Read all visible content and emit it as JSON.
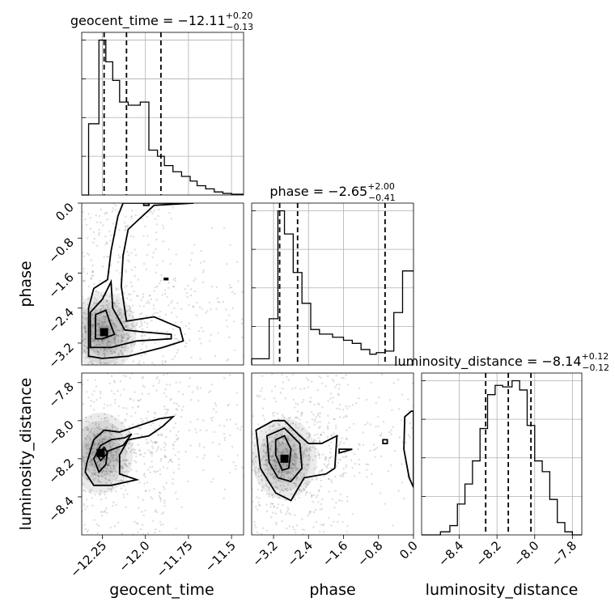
{
  "chart_data": [
    {
      "type": "histogram",
      "parameter": "geocent_time",
      "title_main": "geocent_time = −12.11",
      "title_sup": "+0.20",
      "title_sub": "−0.13",
      "xlim": [
        -12.37,
        -11.43
      ],
      "xticks": [
        -12.25,
        -12.0,
        -11.75,
        -11.5
      ],
      "bins": [
        {
          "x0": -12.37,
          "x1": -12.33,
          "h": 0.0
        },
        {
          "x0": -12.33,
          "x1": -12.27,
          "h": 0.46
        },
        {
          "x0": -12.27,
          "x1": -12.23,
          "h": 1.0
        },
        {
          "x0": -12.23,
          "x1": -12.19,
          "h": 0.86
        },
        {
          "x0": -12.19,
          "x1": -12.15,
          "h": 0.74
        },
        {
          "x0": -12.15,
          "x1": -12.1,
          "h": 0.6
        },
        {
          "x0": -12.1,
          "x1": -12.03,
          "h": 0.58
        },
        {
          "x0": -12.03,
          "x1": -11.98,
          "h": 0.6
        },
        {
          "x0": -11.98,
          "x1": -11.93,
          "h": 0.29
        },
        {
          "x0": -11.93,
          "x1": -11.89,
          "h": 0.25
        },
        {
          "x0": -11.89,
          "x1": -11.84,
          "h": 0.19
        },
        {
          "x0": -11.84,
          "x1": -11.79,
          "h": 0.15
        },
        {
          "x0": -11.79,
          "x1": -11.74,
          "h": 0.12
        },
        {
          "x0": -11.74,
          "x1": -11.7,
          "h": 0.09
        },
        {
          "x0": -11.7,
          "x1": -11.65,
          "h": 0.06
        },
        {
          "x0": -11.65,
          "x1": -11.6,
          "h": 0.04
        },
        {
          "x0": -11.6,
          "x1": -11.55,
          "h": 0.02
        },
        {
          "x0": -11.55,
          "x1": -11.5,
          "h": 0.01
        },
        {
          "x0": -11.5,
          "x1": -11.43,
          "h": 0.005
        }
      ],
      "quantiles": [
        -12.24,
        -12.11,
        -11.91
      ]
    },
    {
      "type": "histogram",
      "parameter": "phase",
      "title_main": "phase = −2.65",
      "title_sup": "+2.00",
      "title_sub": "−0.41",
      "xlim": [
        -3.7,
        0.0
      ],
      "xticks": [
        -3.2,
        -2.4,
        -1.6,
        -0.8,
        0.0
      ],
      "bins": [
        {
          "x0": -3.7,
          "x1": -3.3,
          "h": 0.04
        },
        {
          "x0": -3.3,
          "x1": -3.1,
          "h": 0.3
        },
        {
          "x0": -3.1,
          "x1": -2.95,
          "h": 1.0
        },
        {
          "x0": -2.95,
          "x1": -2.75,
          "h": 0.85
        },
        {
          "x0": -2.75,
          "x1": -2.55,
          "h": 0.6
        },
        {
          "x0": -2.55,
          "x1": -2.35,
          "h": 0.4
        },
        {
          "x0": -2.35,
          "x1": -2.15,
          "h": 0.23
        },
        {
          "x0": -2.15,
          "x1": -1.85,
          "h": 0.2
        },
        {
          "x0": -1.85,
          "x1": -1.6,
          "h": 0.18
        },
        {
          "x0": -1.6,
          "x1": -1.4,
          "h": 0.16
        },
        {
          "x0": -1.4,
          "x1": -1.2,
          "h": 0.14
        },
        {
          "x0": -1.2,
          "x1": -1.0,
          "h": 0.1
        },
        {
          "x0": -1.0,
          "x1": -0.85,
          "h": 0.07
        },
        {
          "x0": -0.85,
          "x1": -0.65,
          "h": 0.08
        },
        {
          "x0": -0.65,
          "x1": -0.45,
          "h": 0.09
        },
        {
          "x0": -0.45,
          "x1": -0.25,
          "h": 0.34
        },
        {
          "x0": -0.25,
          "x1": 0.0,
          "h": 0.61
        }
      ],
      "quantiles": [
        -3.06,
        -2.65,
        -0.65
      ]
    },
    {
      "type": "histogram",
      "parameter": "luminosity_distance",
      "title_main": "luminosity_distance = −8.14",
      "title_sup": "+0.12",
      "title_sub": "−0.12",
      "xlim": [
        -8.6,
        -7.75
      ],
      "xticks": [
        -8.4,
        -8.2,
        -8.0,
        -7.8
      ],
      "bins": [
        {
          "x0": -8.6,
          "x1": -8.5,
          "h": 0.0
        },
        {
          "x0": -8.5,
          "x1": -8.45,
          "h": 0.02
        },
        {
          "x0": -8.45,
          "x1": -8.41,
          "h": 0.06
        },
        {
          "x0": -8.41,
          "x1": -8.37,
          "h": 0.2
        },
        {
          "x0": -8.37,
          "x1": -8.33,
          "h": 0.33
        },
        {
          "x0": -8.33,
          "x1": -8.29,
          "h": 0.48
        },
        {
          "x0": -8.29,
          "x1": -8.25,
          "h": 0.69
        },
        {
          "x0": -8.25,
          "x1": -8.21,
          "h": 0.91
        },
        {
          "x0": -8.21,
          "x1": -8.17,
          "h": 0.97
        },
        {
          "x0": -8.17,
          "x1": -8.12,
          "h": 0.96
        },
        {
          "x0": -8.12,
          "x1": -8.08,
          "h": 1.0
        },
        {
          "x0": -8.08,
          "x1": -8.04,
          "h": 0.94
        },
        {
          "x0": -8.04,
          "x1": -8.0,
          "h": 0.71
        },
        {
          "x0": -8.0,
          "x1": -7.96,
          "h": 0.48
        },
        {
          "x0": -7.96,
          "x1": -7.92,
          "h": 0.41
        },
        {
          "x0": -7.92,
          "x1": -7.88,
          "h": 0.23
        },
        {
          "x0": -7.88,
          "x1": -7.84,
          "h": 0.08
        },
        {
          "x0": -7.84,
          "x1": -7.8,
          "h": 0.02
        },
        {
          "x0": -7.8,
          "x1": -7.75,
          "h": 0.0
        }
      ],
      "quantiles": [
        -8.26,
        -8.14,
        -8.02
      ]
    },
    {
      "type": "scatter-contour",
      "x_parameter": "geocent_time",
      "y_parameter": "phase",
      "xlim": [
        -12.37,
        -11.43
      ],
      "ylim": [
        -3.7,
        0.0
      ],
      "yticks": [
        0.0,
        -0.8,
        -1.6,
        -2.4,
        -3.2
      ],
      "ylabel": "phase",
      "peak": {
        "x": -12.24,
        "y": -2.95
      },
      "contours": [
        [
          [
            -12.33,
            -3.5
          ],
          [
            -12.33,
            -2.4
          ],
          [
            -12.3,
            -1.95
          ],
          [
            -12.22,
            -1.75
          ],
          [
            -12.2,
            -1.1
          ],
          [
            -12.16,
            -0.3
          ],
          [
            -12.13,
            0.0
          ],
          [
            -11.72,
            0.0
          ],
          [
            -11.95,
            -0.05
          ],
          [
            -12.1,
            -0.6
          ],
          [
            -12.13,
            -1.2
          ],
          [
            -12.14,
            -1.9
          ],
          [
            -12.11,
            -2.7
          ],
          [
            -11.95,
            -2.6
          ],
          [
            -11.8,
            -2.85
          ],
          [
            -11.78,
            -3.15
          ],
          [
            -11.9,
            -3.3
          ],
          [
            -12.1,
            -3.5
          ],
          [
            -12.25,
            -3.55
          ],
          [
            -12.33,
            -3.5
          ]
        ],
        [
          [
            -12.32,
            -3.3
          ],
          [
            -12.32,
            -2.5
          ],
          [
            -12.25,
            -2.2
          ],
          [
            -12.2,
            -1.8
          ],
          [
            -12.19,
            -2.4
          ],
          [
            -12.12,
            -2.9
          ],
          [
            -12.0,
            -2.95
          ],
          [
            -11.85,
            -3.0
          ],
          [
            -11.85,
            -3.1
          ],
          [
            -12.05,
            -3.15
          ],
          [
            -12.2,
            -3.3
          ],
          [
            -12.32,
            -3.3
          ]
        ],
        [
          [
            -12.29,
            -3.1
          ],
          [
            -12.29,
            -2.55
          ],
          [
            -12.23,
            -2.45
          ],
          [
            -12.2,
            -2.8
          ],
          [
            -12.18,
            -3.0
          ],
          [
            -12.25,
            -3.1
          ],
          [
            -12.29,
            -3.1
          ]
        ],
        [
          [
            -12.01,
            0.0
          ],
          [
            -12.01,
            -0.05
          ],
          [
            -11.98,
            -0.05
          ],
          [
            -11.98,
            0.0
          ]
        ],
        [
          [
            -11.89,
            -1.72
          ],
          [
            -11.87,
            -1.72
          ],
          [
            -11.87,
            -1.75
          ],
          [
            -11.89,
            -1.75
          ],
          [
            -11.89,
            -1.72
          ]
        ]
      ]
    },
    {
      "type": "scatter-contour",
      "x_parameter": "geocent_time",
      "y_parameter": "luminosity_distance",
      "xlim": [
        -12.37,
        -11.43
      ],
      "ylim": [
        -8.6,
        -7.75
      ],
      "xticks": [
        -12.25,
        -12.0,
        -11.75,
        -11.5
      ],
      "yticks": [
        -7.8,
        -8.0,
        -8.2,
        -8.4
      ],
      "xlabel": "geocent_time",
      "ylabel": "luminosity_distance",
      "peak": {
        "x": -12.26,
        "y": -8.17
      },
      "contours": [
        [
          [
            -12.34,
            -8.22
          ],
          [
            -12.3,
            -8.1
          ],
          [
            -12.24,
            -8.05
          ],
          [
            -12.15,
            -8.06
          ],
          [
            -12.05,
            -8.03
          ],
          [
            -11.92,
            -7.99
          ],
          [
            -11.84,
            -7.98
          ],
          [
            -11.9,
            -8.03
          ],
          [
            -11.98,
            -8.08
          ],
          [
            -12.1,
            -8.1
          ],
          [
            -12.15,
            -8.18
          ],
          [
            -12.15,
            -8.28
          ],
          [
            -12.05,
            -8.31
          ],
          [
            -12.2,
            -8.34
          ],
          [
            -12.3,
            -8.34
          ],
          [
            -12.35,
            -8.27
          ],
          [
            -12.34,
            -8.22
          ]
        ],
        [
          [
            -12.3,
            -8.2
          ],
          [
            -12.26,
            -8.13
          ],
          [
            -12.2,
            -8.1
          ],
          [
            -12.12,
            -8.09
          ],
          [
            -12.08,
            -8.07
          ],
          [
            -12.13,
            -8.13
          ],
          [
            -12.22,
            -8.16
          ],
          [
            -12.23,
            -8.23
          ],
          [
            -12.27,
            -8.27
          ],
          [
            -12.3,
            -8.2
          ]
        ],
        [
          [
            -12.28,
            -8.18
          ],
          [
            -12.24,
            -8.14
          ],
          [
            -12.22,
            -8.17
          ],
          [
            -12.26,
            -8.21
          ],
          [
            -12.28,
            -8.18
          ]
        ]
      ]
    },
    {
      "type": "scatter-contour",
      "x_parameter": "phase",
      "y_parameter": "luminosity_distance",
      "xlim": [
        -3.7,
        0.0
      ],
      "ylim": [
        -8.6,
        -7.75
      ],
      "xticks": [
        -3.2,
        -2.4,
        -1.6,
        -0.8,
        0.0
      ],
      "xlabel": "phase",
      "peak": {
        "x": -2.95,
        "y": -8.2
      },
      "contours": [
        [
          [
            -3.6,
            -8.05
          ],
          [
            -3.2,
            -8.0
          ],
          [
            -2.95,
            -8.0
          ],
          [
            -2.6,
            -8.08
          ],
          [
            -2.4,
            -8.12
          ],
          [
            -2.1,
            -8.12
          ],
          [
            -1.75,
            -8.08
          ],
          [
            -1.8,
            -8.25
          ],
          [
            -2.0,
            -8.28
          ],
          [
            -2.5,
            -8.3
          ],
          [
            -2.8,
            -8.42
          ],
          [
            -3.15,
            -8.38
          ],
          [
            -3.5,
            -8.25
          ],
          [
            -3.6,
            -8.05
          ]
        ],
        [
          [
            -3.35,
            -8.08
          ],
          [
            -2.95,
            -8.04
          ],
          [
            -2.6,
            -8.12
          ],
          [
            -2.55,
            -8.25
          ],
          [
            -2.8,
            -8.32
          ],
          [
            -3.1,
            -8.3
          ],
          [
            -3.3,
            -8.22
          ],
          [
            -3.35,
            -8.08
          ]
        ],
        [
          [
            -3.15,
            -8.1
          ],
          [
            -2.95,
            -8.08
          ],
          [
            -2.8,
            -8.15
          ],
          [
            -2.85,
            -8.25
          ],
          [
            -3.0,
            -8.26
          ],
          [
            -3.15,
            -8.18
          ],
          [
            -3.15,
            -8.1
          ]
        ],
        [
          [
            -0.2,
            -7.98
          ],
          [
            -0.05,
            -7.95
          ],
          [
            0.0,
            -7.95
          ],
          [
            0.0,
            -8.35
          ],
          [
            -0.1,
            -8.3
          ],
          [
            -0.22,
            -8.15
          ],
          [
            -0.2,
            -7.98
          ]
        ],
        [
          [
            -1.7,
            -8.15
          ],
          [
            -1.4,
            -8.15
          ],
          [
            -1.7,
            -8.17
          ],
          [
            -1.7,
            -8.15
          ]
        ],
        [
          [
            -0.7,
            -8.1
          ],
          [
            -0.6,
            -8.1
          ],
          [
            -0.6,
            -8.12
          ],
          [
            -0.7,
            -8.12
          ],
          [
            -0.7,
            -8.1
          ]
        ]
      ]
    }
  ]
}
